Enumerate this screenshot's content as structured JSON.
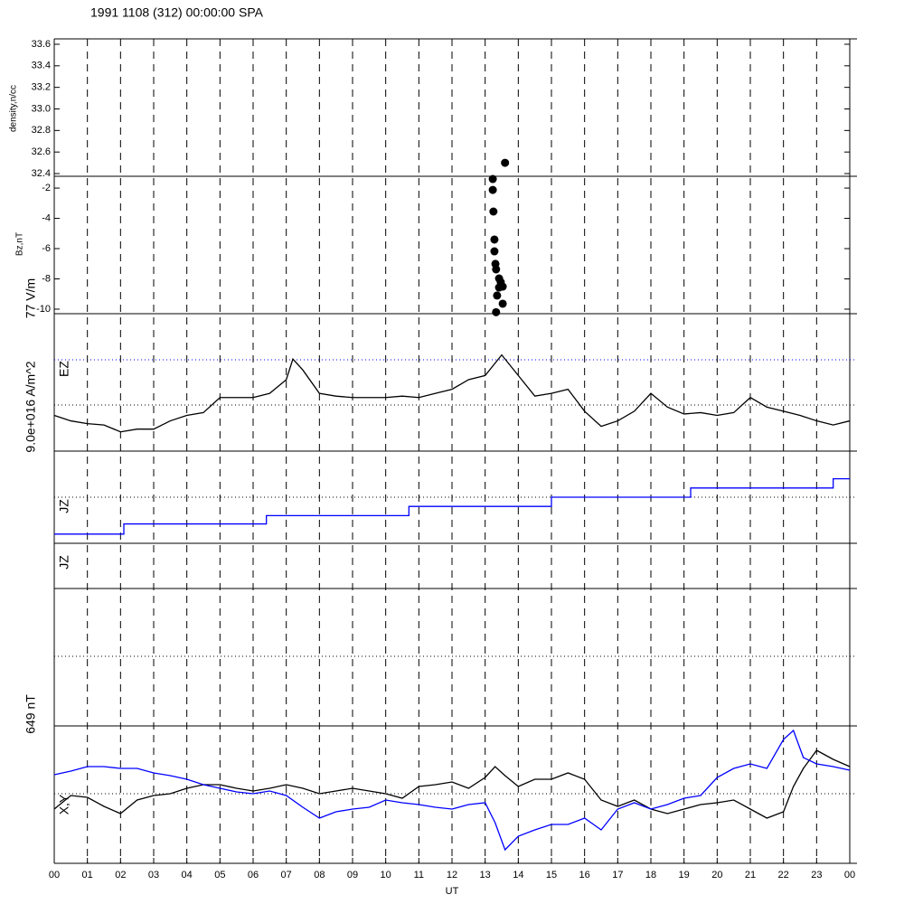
{
  "chart_data": [
    {
      "type": "scatter",
      "title": "1991 1108 (312) 00:00:00 SPA",
      "ylabel": "density,n/cc",
      "ylim": [
        32.375,
        33.65
      ],
      "yticks": [
        32.4,
        32.6,
        32.8,
        {
          "value": 33,
          "label": "33.0"
        },
        33.2,
        33.4,
        33.6
      ],
      "x": [
        13.6
      ],
      "series": [
        {
          "color": "#000000",
          "values": [
            32.5
          ]
        }
      ]
    },
    {
      "type": "scatter",
      "ylabel": "Bz,nT",
      "ylim": [
        -10.3,
        -1.22
      ],
      "yticks": [
        -2,
        -4,
        -6,
        -8,
        -10
      ],
      "x": [
        13.23,
        13.23,
        13.25,
        13.28,
        13.28,
        13.31,
        13.33,
        13.42,
        13.47,
        13.53,
        13.42,
        13.36,
        13.53,
        13.33
      ],
      "series": [
        {
          "color": "#000000",
          "values": [
            -1.4,
            -2.12,
            -3.55,
            -5.4,
            -6.18,
            -7.01,
            -7.37,
            -7.97,
            -8.21,
            -8.51,
            -8.57,
            -9.1,
            -9.64,
            -10.2
          ]
        }
      ]
    },
    {
      "type": "line",
      "scale_label": "77 V/m",
      "label": "EZ",
      "ylim": [
        0,
        1
      ],
      "x": [
        0,
        0.5,
        1,
        1.5,
        2,
        2.5,
        3,
        3.5,
        4,
        4.5,
        5,
        5.5,
        6,
        6.5,
        7,
        7.2,
        7.5,
        8,
        8.5,
        9,
        9.5,
        10,
        10.5,
        11,
        11.5,
        12,
        12.5,
        13,
        13.5,
        14,
        14.5,
        15,
        15.5,
        16,
        16.5,
        17,
        17.5,
        18,
        18.5,
        19,
        19.5,
        20,
        20.5,
        21,
        21.5,
        22,
        22.5,
        23,
        23.5,
        24
      ],
      "series": [
        {
          "color": "#000000",
          "values": [
            0.26,
            0.22,
            0.2,
            0.19,
            0.14,
            0.16,
            0.16,
            0.22,
            0.26,
            0.28,
            0.39,
            0.39,
            0.39,
            0.42,
            0.52,
            0.67,
            0.59,
            0.42,
            0.4,
            0.39,
            0.39,
            0.39,
            0.4,
            0.39,
            0.42,
            0.45,
            0.52,
            0.55,
            0.7,
            0.55,
            0.4,
            0.42,
            0.45,
            0.29,
            0.18,
            0.22,
            0.29,
            0.42,
            0.32,
            0.27,
            0.28,
            0.26,
            0.28,
            0.39,
            0.32,
            0.29,
            0.26,
            0.22,
            0.19,
            0.22
          ]
        }
      ]
    },
    {
      "type": "line",
      "step": true,
      "scale_label": "9.0e+016 A/m^2",
      "label": "JZ",
      "ylim": [
        0,
        1
      ],
      "x": [
        0,
        2.1,
        6.4,
        10.7,
        15,
        19.2,
        23.5,
        24
      ],
      "series": [
        {
          "color": "#0000ff",
          "values": [
            0.1,
            0.21,
            0.3,
            0.4,
            0.5,
            0.6,
            0.7,
            0.7
          ]
        }
      ]
    },
    {
      "type": "line",
      "label": "JZ"
    },
    {
      "type": "line",
      "scale_label": "649 nT",
      "label": "X,Y",
      "ylim": [
        0,
        152
      ],
      "xlim": [
        0,
        24
      ],
      "xlabel": "UT",
      "xticks": [
        {
          "value": 0,
          "label": "00"
        },
        {
          "value": 1,
          "label": "01"
        },
        {
          "value": 2,
          "label": "02"
        },
        {
          "value": 3,
          "label": "03"
        },
        {
          "value": 4,
          "label": "04"
        },
        {
          "value": 5,
          "label": "05"
        },
        {
          "value": 6,
          "label": "06"
        },
        {
          "value": 7,
          "label": "07"
        },
        {
          "value": 8,
          "label": "08"
        },
        {
          "value": 9,
          "label": "09"
        },
        {
          "value": 10,
          "label": "10"
        },
        {
          "value": 11,
          "label": "11"
        },
        {
          "value": 12,
          "label": "12"
        },
        {
          "value": 13,
          "label": "13"
        },
        {
          "value": 14,
          "label": "14"
        },
        {
          "value": 15,
          "label": "15"
        },
        {
          "value": 16,
          "label": "16"
        },
        {
          "value": 17,
          "label": "17"
        },
        {
          "value": 18,
          "label": "18"
        },
        {
          "value": 19,
          "label": "19"
        },
        {
          "value": 20,
          "label": "20"
        },
        {
          "value": 21,
          "label": "21"
        },
        {
          "value": 22,
          "label": "22"
        },
        {
          "value": 23,
          "label": "23"
        },
        {
          "value": 24,
          "label": "00"
        }
      ],
      "x": [
        0,
        0.5,
        1,
        1.5,
        2,
        2.5,
        3,
        3.5,
        4,
        4.5,
        5,
        5.5,
        6,
        6.5,
        7,
        7.5,
        8,
        8.5,
        9,
        9.5,
        10,
        10.5,
        11,
        11.5,
        12,
        12.5,
        13,
        13.3,
        13.6,
        14,
        14.5,
        15,
        15.5,
        16,
        16.5,
        17,
        17.5,
        18,
        18.5,
        19,
        19.5,
        20,
        20.5,
        21,
        21.5,
        22,
        22.3,
        22.6,
        23,
        23.5,
        24
      ],
      "series": [
        {
          "color": "#000000",
          "values": [
            60,
            75,
            73,
            63,
            55,
            70,
            75,
            77,
            83,
            87,
            87,
            83,
            80,
            83,
            87,
            83,
            77,
            80,
            83,
            80,
            77,
            72,
            85,
            87,
            90,
            83,
            95,
            107,
            97,
            85,
            93,
            93,
            100,
            93,
            70,
            63,
            70,
            60,
            55,
            60,
            65,
            67,
            70,
            60,
            50,
            57,
            85,
            105,
            125,
            115,
            107
          ]
        },
        {
          "color": "#0000ff",
          "values": [
            98,
            102,
            107,
            107,
            105,
            105,
            100,
            97,
            93,
            87,
            83,
            79,
            77,
            80,
            75,
            62,
            50,
            57,
            60,
            62,
            70,
            67,
            65,
            62,
            60,
            65,
            67,
            45,
            15,
            30,
            37,
            43,
            43,
            50,
            37,
            60,
            67,
            60,
            65,
            72,
            75,
            95,
            105,
            110,
            105,
            137,
            147,
            117,
            110,
            107,
            103
          ]
        }
      ]
    }
  ]
}
